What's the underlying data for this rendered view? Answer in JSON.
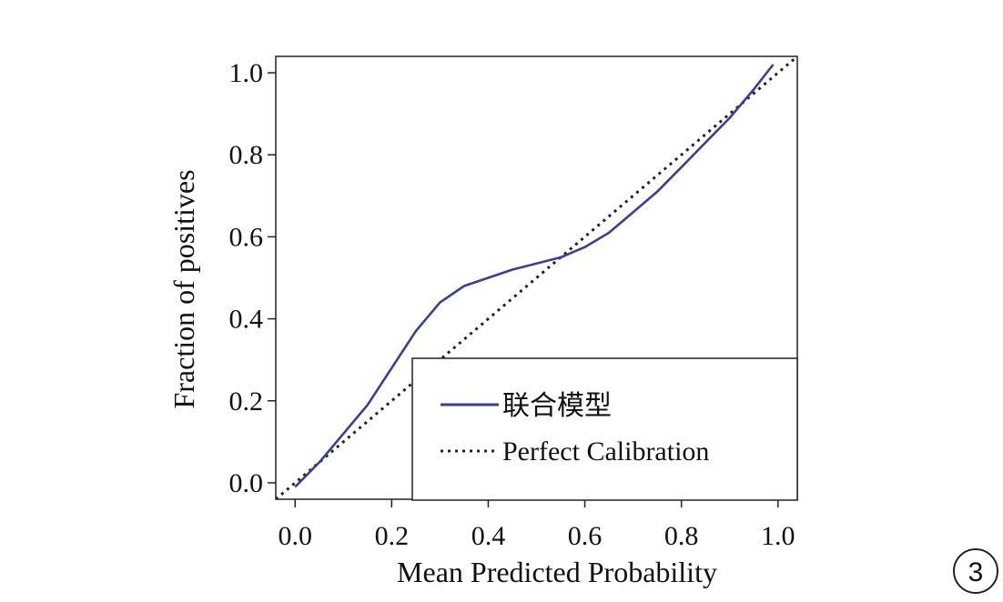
{
  "figure": {
    "badge": "3"
  },
  "colors": {
    "model_line": "#3c3f8f",
    "reference_line": "#222222",
    "axes": "#222222"
  },
  "chart_data": {
    "type": "line",
    "title": "",
    "xlabel": "Mean Predicted Probability",
    "ylabel": "Fraction of positives",
    "xlim": [
      -0.04,
      1.04
    ],
    "ylim": [
      -0.04,
      1.04
    ],
    "xticks": [
      "0.0",
      "0.2",
      "0.4",
      "0.6",
      "0.8",
      "1.0"
    ],
    "yticks": [
      "0.0",
      "0.2",
      "0.4",
      "0.6",
      "0.8",
      "1.0"
    ],
    "grid": false,
    "legend_position": "bottom-right",
    "series": [
      {
        "name": "联合模型",
        "style": "solid",
        "color": "#3c3f8f",
        "x": [
          0.0,
          0.05,
          0.1,
          0.15,
          0.2,
          0.25,
          0.3,
          0.35,
          0.4,
          0.45,
          0.5,
          0.55,
          0.6,
          0.65,
          0.7,
          0.75,
          0.8,
          0.85,
          0.9,
          0.95,
          0.99
        ],
        "y": [
          -0.01,
          0.05,
          0.12,
          0.19,
          0.28,
          0.37,
          0.44,
          0.48,
          0.5,
          0.52,
          0.535,
          0.55,
          0.575,
          0.61,
          0.66,
          0.71,
          0.77,
          0.83,
          0.89,
          0.96,
          1.02
        ]
      },
      {
        "name": "Perfect Calibration",
        "style": "dotted",
        "color": "#222222",
        "x": [
          -0.04,
          1.04
        ],
        "y": [
          -0.04,
          1.04
        ]
      }
    ]
  }
}
